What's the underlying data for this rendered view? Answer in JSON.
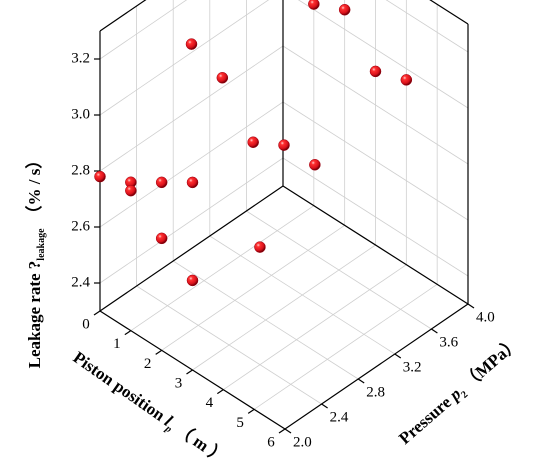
{
  "chart_data": {
    "type": "scatter3d",
    "x_label": {
      "text": "Piston position ",
      "symbol": "l",
      "subscript": "p",
      "unit": "（ m ）",
      "ticks": [
        "0",
        "1",
        "2",
        "3",
        "4",
        "5",
        "6"
      ],
      "range": [
        0,
        6
      ]
    },
    "y_label": {
      "text": "Pressure ",
      "symbol": "p",
      "subscript": "2",
      "unit": "（MPa）",
      "ticks": [
        "2.0",
        "2.4",
        "2.8",
        "3.2",
        "3.6",
        "4.0"
      ],
      "range": [
        2.0,
        4.0
      ]
    },
    "z_label": {
      "text": "Leakage rate ?",
      "subscript": "leakage",
      "unit": "（% / s）",
      "ticks": [
        "2.4",
        "2.6",
        "2.8",
        "3.0",
        "3.2"
      ],
      "range": [
        2.3,
        3.3
      ]
    },
    "marker_color": "#e8141b",
    "grid": true,
    "points": [
      {
        "x": 0,
        "y": 4.0,
        "z": 3.18
      },
      {
        "x": 1,
        "y": 4.0,
        "z": 3.02
      },
      {
        "x": 2,
        "y": 4.0,
        "z": 3.07
      },
      {
        "x": 3,
        "y": 4.0,
        "z": 2.92
      },
      {
        "x": 4,
        "y": 4.0,
        "z": 2.96
      },
      {
        "x": 0,
        "y": 3.0,
        "z": 3.03
      },
      {
        "x": 1,
        "y": 3.0,
        "z": 2.98
      },
      {
        "x": 2,
        "y": 3.0,
        "z": 2.82
      },
      {
        "x": 3,
        "y": 3.0,
        "z": 2.88
      },
      {
        "x": 0,
        "y": 2.0,
        "z": 2.78
      },
      {
        "x": 1,
        "y": 2.0,
        "z": 2.83
      },
      {
        "x": 2,
        "y": 2.0,
        "z": 2.9
      },
      {
        "x": 3,
        "y": 2.0,
        "z": 2.97
      },
      {
        "x": 3,
        "y": 2.0,
        "z": 2.62
      },
      {
        "x": 4,
        "y": 2.4,
        "z": 2.72
      },
      {
        "x": 1,
        "y": 2.0,
        "z": 2.8
      },
      {
        "x": 4,
        "y": 3.0,
        "z": 2.88
      },
      {
        "x": 2,
        "y": 2.0,
        "z": 2.7
      }
    ]
  }
}
